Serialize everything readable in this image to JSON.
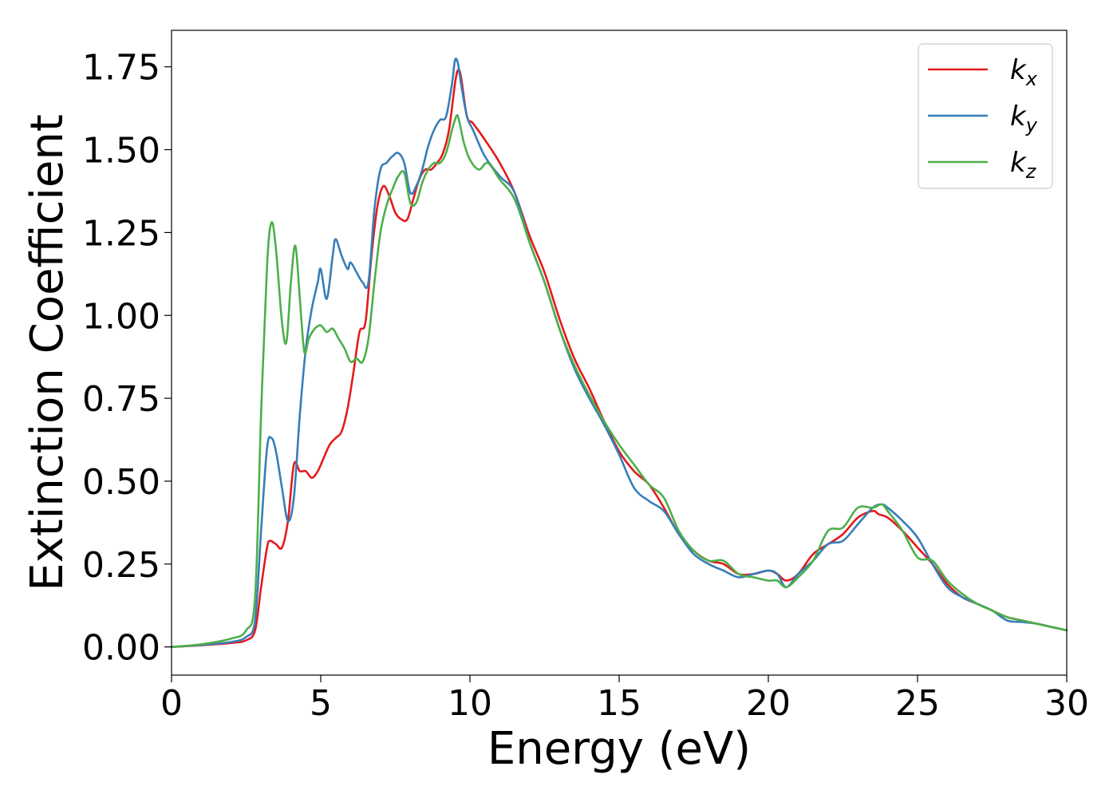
{
  "chart_data": {
    "type": "line",
    "xlabel": "Energy (eV)",
    "ylabel": "Extinction Coefficient",
    "xlim": [
      0,
      30
    ],
    "ylim": [
      -0.085,
      1.86
    ],
    "x_ticks": [
      0,
      5,
      10,
      15,
      20,
      25,
      30
    ],
    "y_ticks": [
      "0.00",
      "0.25",
      "0.50",
      "0.75",
      "1.00",
      "1.25",
      "1.50",
      "1.75"
    ],
    "grid": false,
    "legend_position": "top-right",
    "series": [
      {
        "name": "k",
        "subscript": "x",
        "color": "#e41a1c",
        "x": [
          0,
          1,
          2,
          2.5,
          2.8,
          3.0,
          3.2,
          3.3,
          3.5,
          3.7,
          3.9,
          4.1,
          4.3,
          4.5,
          4.7,
          4.9,
          5.1,
          5.3,
          5.5,
          5.7,
          5.9,
          6.1,
          6.3,
          6.5,
          6.7,
          6.9,
          7.1,
          7.3,
          7.5,
          7.7,
          7.9,
          8.1,
          8.3,
          8.5,
          8.7,
          8.9,
          9.1,
          9.3,
          9.5,
          9.6,
          9.7,
          9.9,
          10.1,
          10.5,
          11,
          11.5,
          12,
          12.5,
          13,
          13.5,
          14,
          14.5,
          15,
          15.5,
          16,
          16.5,
          17,
          17.5,
          18,
          18.5,
          19,
          19.5,
          20,
          20.3,
          20.6,
          21,
          21.5,
          22,
          22.5,
          23,
          23.5,
          23.7,
          24,
          24.5,
          25,
          25.5,
          26,
          26.5,
          27,
          27.5,
          28,
          28.5,
          29,
          29.5,
          30
        ],
        "y": [
          0.0,
          0.005,
          0.012,
          0.02,
          0.05,
          0.18,
          0.3,
          0.32,
          0.31,
          0.3,
          0.38,
          0.55,
          0.53,
          0.53,
          0.51,
          0.53,
          0.57,
          0.61,
          0.63,
          0.65,
          0.72,
          0.83,
          0.95,
          0.98,
          1.18,
          1.33,
          1.39,
          1.36,
          1.31,
          1.29,
          1.29,
          1.35,
          1.41,
          1.44,
          1.44,
          1.46,
          1.49,
          1.56,
          1.7,
          1.74,
          1.72,
          1.6,
          1.58,
          1.53,
          1.46,
          1.37,
          1.24,
          1.13,
          0.99,
          0.87,
          0.78,
          0.68,
          0.59,
          0.53,
          0.49,
          0.42,
          0.34,
          0.29,
          0.26,
          0.25,
          0.22,
          0.22,
          0.23,
          0.22,
          0.2,
          0.22,
          0.28,
          0.31,
          0.34,
          0.39,
          0.41,
          0.4,
          0.39,
          0.35,
          0.3,
          0.25,
          0.19,
          0.15,
          0.13,
          0.11,
          0.09,
          0.08,
          0.07,
          0.06,
          0.05
        ]
      },
      {
        "name": "k",
        "subscript": "y",
        "color": "#377eb8",
        "x": [
          0,
          1,
          2,
          2.5,
          2.8,
          3.0,
          3.2,
          3.35,
          3.5,
          3.7,
          3.9,
          4.1,
          4.3,
          4.5,
          4.7,
          4.9,
          5.0,
          5.2,
          5.4,
          5.5,
          5.7,
          5.9,
          6.0,
          6.2,
          6.4,
          6.6,
          6.8,
          7.0,
          7.2,
          7.4,
          7.6,
          7.8,
          8.0,
          8.2,
          8.4,
          8.6,
          8.8,
          9.0,
          9.2,
          9.4,
          9.5,
          9.6,
          9.7,
          9.9,
          10.1,
          10.5,
          11,
          11.5,
          12,
          12.5,
          13,
          13.5,
          14,
          14.5,
          15,
          15.5,
          16,
          16.5,
          17,
          17.5,
          18,
          18.5,
          19,
          19.5,
          20,
          20.3,
          20.6,
          21,
          21.5,
          22,
          22.5,
          23,
          23.5,
          23.8,
          24,
          24.5,
          25,
          25.5,
          26,
          26.5,
          27,
          27.5,
          28,
          28.5,
          29,
          29.5,
          30
        ],
        "y": [
          0.0,
          0.006,
          0.015,
          0.03,
          0.08,
          0.35,
          0.6,
          0.63,
          0.59,
          0.48,
          0.38,
          0.45,
          0.7,
          0.9,
          1.02,
          1.1,
          1.14,
          1.05,
          1.18,
          1.23,
          1.18,
          1.14,
          1.16,
          1.13,
          1.1,
          1.1,
          1.32,
          1.44,
          1.46,
          1.48,
          1.49,
          1.46,
          1.37,
          1.39,
          1.44,
          1.51,
          1.56,
          1.59,
          1.6,
          1.7,
          1.77,
          1.76,
          1.7,
          1.6,
          1.56,
          1.48,
          1.42,
          1.37,
          1.22,
          1.1,
          0.96,
          0.84,
          0.75,
          0.67,
          0.58,
          0.48,
          0.44,
          0.41,
          0.34,
          0.28,
          0.25,
          0.23,
          0.21,
          0.22,
          0.23,
          0.22,
          0.18,
          0.22,
          0.26,
          0.31,
          0.32,
          0.37,
          0.42,
          0.43,
          0.42,
          0.38,
          0.33,
          0.25,
          0.18,
          0.15,
          0.13,
          0.11,
          0.08,
          0.075,
          0.07,
          0.06,
          0.05
        ]
      },
      {
        "name": "k",
        "subscript": "z",
        "color": "#4daf4a",
        "x": [
          0,
          1,
          2,
          2.5,
          2.8,
          3.0,
          3.2,
          3.35,
          3.5,
          3.7,
          3.85,
          4.0,
          4.15,
          4.3,
          4.45,
          4.6,
          4.8,
          5.0,
          5.2,
          5.4,
          5.6,
          5.8,
          6.0,
          6.2,
          6.4,
          6.6,
          6.8,
          7.0,
          7.2,
          7.4,
          7.6,
          7.8,
          8.0,
          8.2,
          8.4,
          8.6,
          8.8,
          9.0,
          9.2,
          9.4,
          9.5,
          9.6,
          9.8,
          10.0,
          10.3,
          10.6,
          11,
          11.5,
          12,
          12.5,
          13,
          13.5,
          14,
          14.5,
          15,
          15.5,
          16,
          16.5,
          17,
          17.5,
          18,
          18.5,
          19,
          19.5,
          20,
          20.3,
          20.6,
          21,
          21.5,
          22,
          22.5,
          23,
          23.5,
          23.8,
          24,
          24.5,
          25,
          25.5,
          26,
          26.5,
          27,
          27.5,
          28,
          28.5,
          29,
          29.5,
          30
        ],
        "y": [
          0.0,
          0.008,
          0.025,
          0.05,
          0.15,
          0.7,
          1.15,
          1.28,
          1.2,
          0.98,
          0.92,
          1.1,
          1.21,
          1.05,
          0.89,
          0.93,
          0.96,
          0.97,
          0.95,
          0.96,
          0.93,
          0.9,
          0.86,
          0.87,
          0.86,
          0.93,
          1.1,
          1.25,
          1.33,
          1.38,
          1.42,
          1.43,
          1.34,
          1.34,
          1.4,
          1.44,
          1.46,
          1.46,
          1.49,
          1.56,
          1.59,
          1.6,
          1.52,
          1.47,
          1.44,
          1.46,
          1.41,
          1.35,
          1.22,
          1.1,
          0.96,
          0.85,
          0.76,
          0.68,
          0.61,
          0.55,
          0.49,
          0.45,
          0.35,
          0.29,
          0.26,
          0.26,
          0.22,
          0.21,
          0.2,
          0.2,
          0.18,
          0.21,
          0.26,
          0.35,
          0.36,
          0.42,
          0.42,
          0.43,
          0.41,
          0.35,
          0.27,
          0.26,
          0.2,
          0.16,
          0.13,
          0.11,
          0.09,
          0.08,
          0.07,
          0.06,
          0.05
        ]
      }
    ]
  }
}
